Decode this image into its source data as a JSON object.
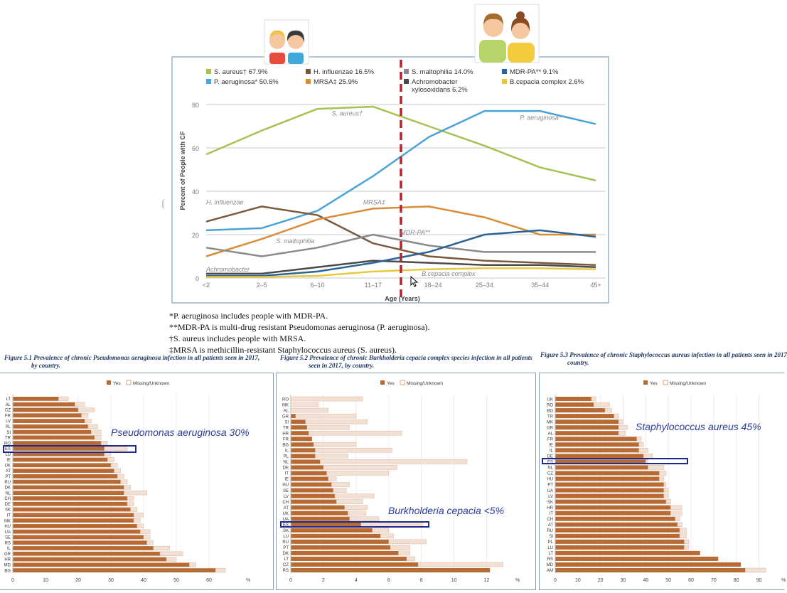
{
  "main_chart": {
    "legend": [
      {
        "label": "S. aureus† 67.9%",
        "color": "#a6c252"
      },
      {
        "label": "P. aeruginosa* 50.6%",
        "color": "#4aa3d6"
      },
      {
        "label": "H. influenzae 16.5%",
        "color": "#7a5a3c"
      },
      {
        "label": "MRSA‡ 25.9%",
        "color": "#d98c3a"
      },
      {
        "label": "S. maltophilia 14.0%",
        "color": "#8a8a8a"
      },
      {
        "label": "Achromobacter xylosoxidans 6.2%",
        "color": "#4a4a4a"
      },
      {
        "label": "MDR-PA** 9.1%",
        "color": "#2a6496"
      },
      {
        "label": "B.cepacia complex 2.6%",
        "color": "#e8c840"
      }
    ],
    "chart_data": {
      "type": "line",
      "ylabel": "Percent of People with CF",
      "xlabel": "Age (Years)",
      "ylim": [
        0,
        80
      ],
      "yticks": [
        0,
        20,
        40,
        60,
        80
      ],
      "categories": [
        "<2",
        "2–5",
        "6–10",
        "11–17",
        "18–24",
        "25–34",
        "35–44",
        "45+"
      ],
      "divider_between": [
        "11–17",
        "18–24"
      ],
      "series": [
        {
          "name": "S. aureus",
          "color": "#a6c252",
          "values": [
            57,
            68,
            78,
            79,
            70,
            61,
            51,
            45
          ]
        },
        {
          "name": "P. aeruginosa",
          "color": "#4aa3d6",
          "values": [
            22,
            23,
            31,
            47,
            65,
            77,
            77,
            71
          ]
        },
        {
          "name": "H. influenzae",
          "color": "#7a5a3c",
          "values": [
            26,
            33,
            29,
            16,
            10,
            8,
            7,
            6
          ]
        },
        {
          "name": "MRSA",
          "color": "#d98c3a",
          "values": [
            10,
            18,
            27,
            32,
            33,
            28,
            20,
            20
          ]
        },
        {
          "name": "S. maltophilia",
          "color": "#8a8a8a",
          "values": [
            14,
            10,
            14,
            20,
            15,
            12,
            12,
            12
          ]
        },
        {
          "name": "Achromobacter",
          "color": "#4a4a4a",
          "values": [
            2,
            2,
            5,
            8,
            7,
            6,
            6,
            5
          ]
        },
        {
          "name": "MDR-PA",
          "color": "#2a6496",
          "values": [
            1,
            1,
            3,
            7,
            12,
            20,
            22,
            19
          ]
        },
        {
          "name": "B.cepacia complex",
          "color": "#e8c840",
          "values": [
            0.5,
            0.5,
            1,
            3,
            4,
            4.5,
            4.5,
            4
          ]
        }
      ],
      "annotations": [
        {
          "text": "S. aureus†",
          "x": "6–10",
          "y": 75
        },
        {
          "text": "P. aeruginosa*",
          "x": "25–34",
          "y": 73
        },
        {
          "text": "H. influenzae",
          "x": "<2",
          "y": 34
        },
        {
          "text": "MRSA‡",
          "x": "11–17",
          "y": 34
        },
        {
          "text": "S. maltophilia",
          "x": "2–5",
          "y": 16
        },
        {
          "text": "MDR-PA**",
          "x": "18–24",
          "y": 20
        },
        {
          "text": "Achromobacter",
          "x": "<2",
          "y": 3
        },
        {
          "text": "B.cepacia complex",
          "x": "18–24",
          "y": 1
        }
      ]
    }
  },
  "notes": [
    "*P. aeruginosa includes people with MDR-PA.",
    "**MDR-PA is multi-drug resistant Pseudomonas aeruginosa (P. aeruginosa).",
    "†S. aureus includes people with MRSA.",
    "‡MRSA is methicillin-resistant Staphylococcus aureus (S. aureus)."
  ],
  "figures": [
    {
      "title": "Figure 5.1 Prevalence of chronic Pseudomonas aeruginosa infection in all patients seen in 2017,",
      "title2": "by country.",
      "overlay": "Pseudomonas aeruginosa 30%"
    },
    {
      "title": "Figure 5.2  Prevalence of chronic Burkholderia cepacia complex species infection in all patients",
      "title2": "seen in 2017, by country.",
      "overlay": "Burkholderia cepacia <5%"
    },
    {
      "title": "Figure 5.3 Prevalence of chronic Staphylococcus aureus infection in all patients seen in 2017",
      "title2": "country.",
      "overlay": "Staphylococcus aureus 45%"
    }
  ],
  "chart_data": [
    {
      "type": "bar",
      "orientation": "horizontal",
      "legend": [
        "Yes",
        "Missing/Unknown"
      ],
      "colors": [
        "#b86a35",
        "#f3e0d4"
      ],
      "xlim": [
        0,
        70
      ],
      "xticks": [
        0,
        10,
        20,
        30,
        40,
        50,
        60
      ],
      "xunit": "%",
      "highlight_index": 9,
      "categories": [
        "LT",
        "AL",
        "CZ",
        "FR",
        "LV",
        "PL",
        "SI",
        "TR",
        "RO",
        "ES",
        "LU",
        "IE",
        "UK",
        "AT",
        "PT",
        "RU",
        "DK",
        "NL",
        "CH",
        "DE",
        "SK",
        "IT",
        "MK",
        "HU",
        "UA",
        "SE",
        "RS",
        "IL",
        "GR",
        "HR",
        "MD",
        "BG"
      ],
      "yes": [
        14,
        19,
        20,
        21,
        22,
        23,
        24,
        25,
        27,
        28,
        28,
        29,
        30,
        31,
        32,
        33,
        34,
        34,
        35,
        35,
        36,
        37,
        37,
        38,
        39,
        40,
        41,
        43,
        45,
        47,
        54,
        62
      ],
      "missing": [
        3,
        3,
        5,
        2,
        2,
        3,
        3,
        2,
        2,
        7,
        2,
        2,
        2,
        2,
        2,
        2,
        2,
        7,
        2,
        2,
        2,
        3,
        2,
        2,
        3,
        2,
        2,
        5,
        7,
        3,
        2,
        3
      ]
    },
    {
      "type": "bar",
      "orientation": "horizontal",
      "legend": [
        "Yes",
        "Missing/Unknown"
      ],
      "colors": [
        "#b86a35",
        "#f3e0d4"
      ],
      "xlim": [
        0,
        13.5
      ],
      "xticks": [
        0,
        2,
        4,
        6,
        8,
        10,
        12
      ],
      "xunit": "%",
      "highlight_index": 21,
      "categories": [
        "RO",
        "MK",
        "AL",
        "GR",
        "SI",
        "TR",
        "HR",
        "FR",
        "BG",
        "IL",
        "PL",
        "NL",
        "DE",
        "IT",
        "IE",
        "HU",
        "SE",
        "LV",
        "CH",
        "AT",
        "UK",
        "UA",
        "ES",
        "SK",
        "LU",
        "RU",
        "PT",
        "DK",
        "LT",
        "CZ",
        "RS"
      ],
      "yes": [
        0,
        0,
        0,
        0.3,
        0.9,
        1,
        1.1,
        1.3,
        1.4,
        1.5,
        1.5,
        1.8,
        2,
        2.2,
        2.3,
        2.5,
        2.6,
        2.7,
        2.8,
        3.3,
        3.5,
        3.6,
        4.3,
        5,
        5.5,
        6,
        6.1,
        6.6,
        7.1,
        7.8,
        12.2
      ],
      "missing": [
        4.4,
        1.7,
        2.3,
        3.7,
        3.8,
        2.6,
        5.7,
        0,
        2.6,
        4.7,
        2,
        9,
        4.5,
        3.8,
        0.5,
        1.1,
        0.8,
        2.4,
        1.6,
        1.4,
        1.1,
        1.8,
        3.8,
        1,
        0.8,
        2.3,
        1.2,
        0.7,
        0.5,
        5.2,
        0
      ]
    },
    {
      "type": "bar",
      "orientation": "horizontal",
      "legend": [
        "Yes",
        "Missing/Unknown"
      ],
      "colors": [
        "#b86a35",
        "#f3e0d4"
      ],
      "xlim": [
        0,
        98
      ],
      "xticks": [
        0,
        10,
        20,
        30,
        40,
        50,
        60,
        70,
        80,
        90
      ],
      "xunit": "%",
      "highlight_index": 11,
      "categories": [
        "UK",
        "RO",
        "BG",
        "TR",
        "MK",
        "GR",
        "AL",
        "FR",
        "IE",
        "IL",
        "DE",
        "ES",
        "NL",
        "CZ",
        "HU",
        "PT",
        "UA",
        "LV",
        "SK",
        "HR",
        "IT",
        "CH",
        "AT",
        "RU",
        "SI",
        "PL",
        "LU",
        "LT",
        "RS",
        "MD",
        "AM"
      ],
      "yes": [
        16,
        17,
        22,
        26,
        28,
        28,
        28,
        36,
        37,
        37,
        39,
        40,
        41,
        46,
        46,
        48,
        48,
        48,
        49,
        51,
        51,
        53,
        54,
        55,
        55,
        57,
        57,
        64,
        72,
        82,
        84
      ],
      "missing": [
        2,
        7,
        3,
        2,
        2,
        4,
        3,
        2,
        2,
        4,
        4,
        1,
        7,
        3,
        2,
        1,
        2,
        2,
        2,
        5,
        5,
        2,
        2,
        3,
        3,
        2,
        2,
        0,
        0,
        0,
        9
      ]
    }
  ]
}
